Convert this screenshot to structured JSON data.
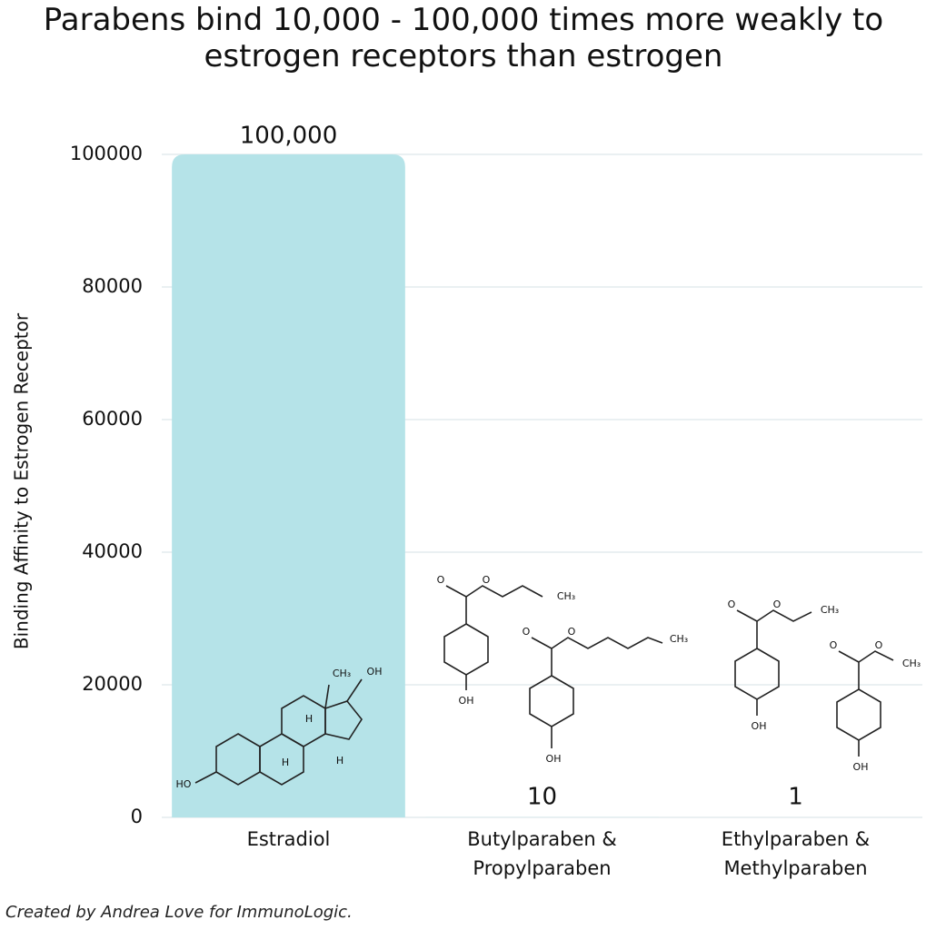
{
  "chart_data": {
    "type": "bar",
    "title": "Parabens bind 10,000 - 100,000 times more weakly to estrogen receptors than estrogen",
    "y_label": "Binding Affinity to Estrogen Receptor",
    "categories": [
      "Estradiol",
      "Butylparaben & Propylparaben",
      "Ethylparaben & Methylparaben"
    ],
    "values": [
      100000,
      10,
      1
    ],
    "value_labels": [
      "100,000",
      "10",
      "1"
    ],
    "color": "#b5e3e8",
    "ylim": [
      0,
      100000
    ],
    "yticks": [
      0,
      20000,
      40000,
      60000,
      80000,
      100000
    ],
    "grid": true,
    "annotations": [
      "HO",
      "OH",
      "H",
      "CH₃",
      "O"
    ],
    "footer": "Created by Andrea Love for ImmunoLogic."
  }
}
